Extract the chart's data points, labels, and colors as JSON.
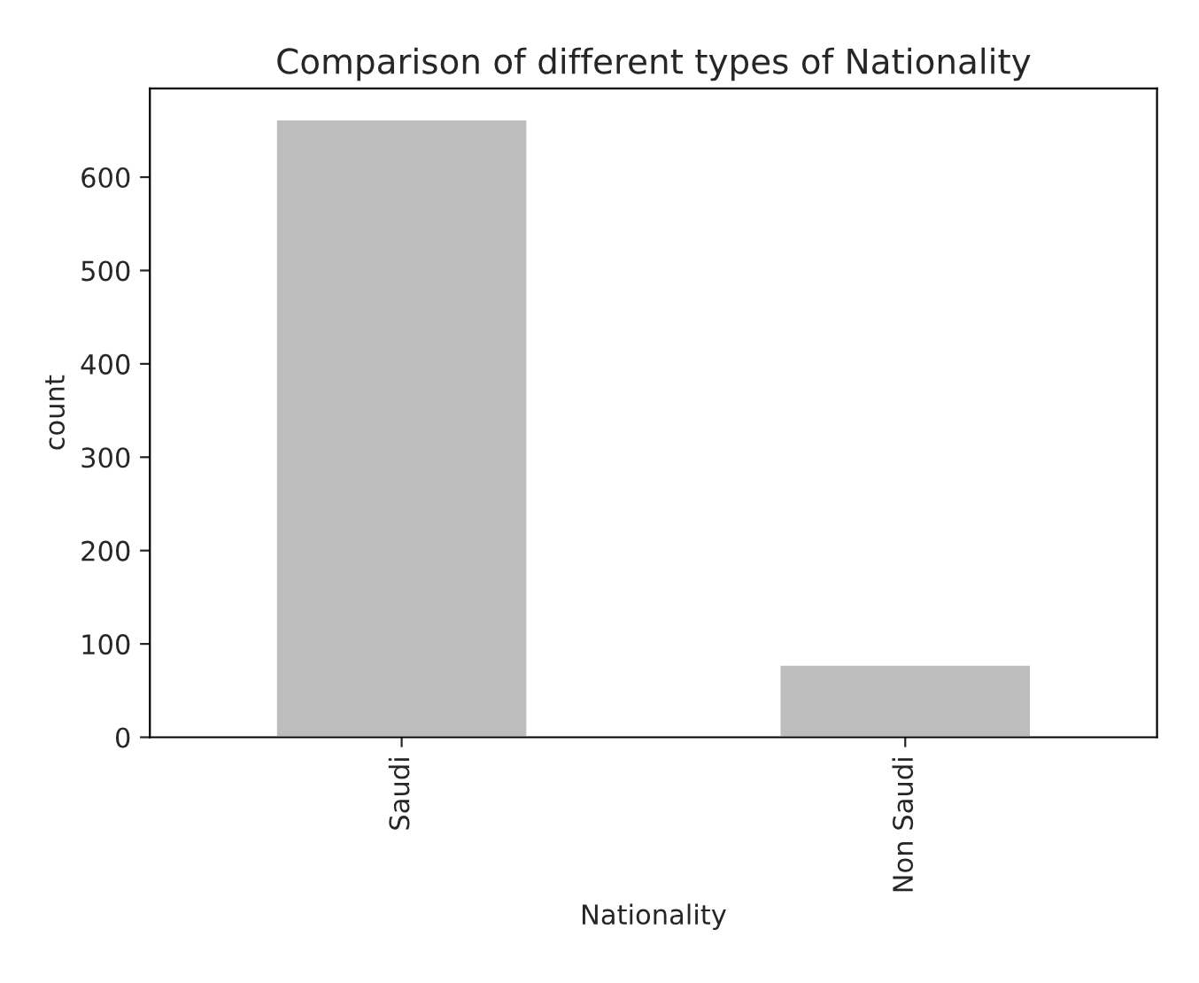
{
  "chart_data": {
    "type": "bar",
    "title": "Comparison of different types of Nationality",
    "xlabel": "Nationality",
    "ylabel": "count",
    "categories": [
      "Saudi",
      "Non Saudi"
    ],
    "values": [
      662,
      78
    ],
    "color": "#bdbdbd",
    "ylim": [
      0,
      695
    ],
    "yticks": [
      0,
      100,
      200,
      300,
      400,
      500,
      600
    ],
    "grid": false,
    "legend": false
  }
}
